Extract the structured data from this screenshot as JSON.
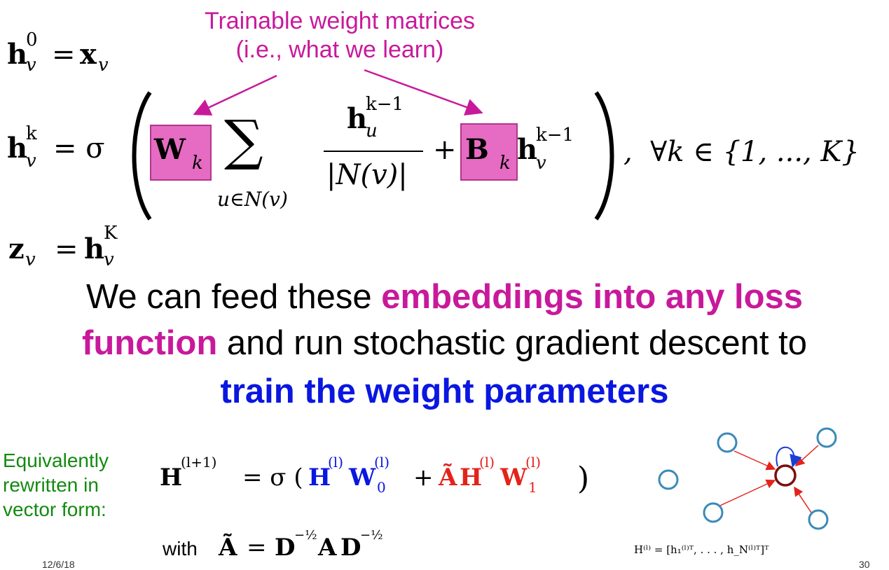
{
  "annotation": {
    "line1": "Trainable weight matrices",
    "line2": "(i.e., what we learn)"
  },
  "equations": {
    "init": {
      "lhs_base": "h",
      "lhs_sup": "0",
      "lhs_sub": "v",
      "eq": "=",
      "rhs_base": "x",
      "rhs_sub": "v"
    },
    "update": {
      "lhs_base": "h",
      "lhs_sup": "k",
      "lhs_sub": "v",
      "eq": "= σ",
      "W": "W",
      "W_sub": "k",
      "sum": "∑",
      "sum_sub": "u∈N(v)",
      "num_base": "h",
      "num_sup": "k−1",
      "num_sub": "u",
      "den": "|N(v)|",
      "plus": "+",
      "B": "B",
      "B_sub": "k",
      "h_base": "h",
      "h_sup": "k−1",
      "h_sub": "v",
      "forall": ",  ∀k ∈ {1, ..., K}"
    },
    "output": {
      "lhs_base": "z",
      "lhs_sub": "v",
      "eq": "=",
      "rhs_base": "h",
      "rhs_sup": "K",
      "rhs_sub": "v"
    }
  },
  "message": {
    "part1": "We can feed these ",
    "part2": "embeddings into any loss",
    "part3": "function",
    "part4": " and run stochastic gradient descent to",
    "part5": "train the weight parameters"
  },
  "vector_form": {
    "label": "Equivalently rewritten in vector form:",
    "with": "with",
    "matrix_eq": {
      "lhs": "H",
      "lhs_sup": "(l+1)",
      "eq": "= σ (",
      "t1": "H",
      "t1_sup": "(l)",
      "t2": "W",
      "t2_sup": "(l)",
      "t2_sub": "0",
      "plus": "+",
      "t3": "Ã",
      "t4": "H",
      "t4_sup": "(l)",
      "t5": "W",
      "t5_sup": "(l)",
      "t5_sub": "1",
      "close": ")"
    },
    "normalization": {
      "A": "Ã",
      "eq": "=",
      "D1": "D",
      "exp1": "−½",
      "mid": "A",
      "D2": "D",
      "exp2": "−½"
    },
    "H_def": "H⁽ˡ⁾ = [h₁⁽ˡ⁾ᵀ, . . . , h_N⁽ˡ⁾ᵀ]ᵀ"
  },
  "footer": {
    "date": "12/6/18",
    "page": "30"
  },
  "colors": {
    "pink": "#c8199b",
    "blue": "#0a17e0",
    "red": "#e3231b",
    "green": "#138a10",
    "node": "#3a8ab8",
    "center": "#7a0f0f"
  }
}
